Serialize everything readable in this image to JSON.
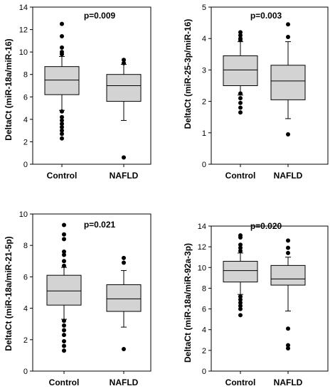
{
  "chart_data": [
    {
      "type": "box",
      "annotation": "p=0.009",
      "ylabel": "DeltaCt (miR-18a/miR-16)",
      "xlabel": "",
      "ylim": [
        0,
        14
      ],
      "yticks": [
        "0",
        "2",
        "4",
        "6",
        "8",
        "10",
        "12",
        "14"
      ],
      "categories": [
        "Control",
        "NAFLD"
      ],
      "boxes": [
        {
          "name": "Control",
          "whisker_low": 4.8,
          "q1": 6.2,
          "median": 7.5,
          "q3": 8.7,
          "whisker_high": 9.6,
          "outliers": [
            12.5,
            11.4,
            10.4,
            10.0,
            9.8,
            4.7,
            4.2,
            3.9,
            3.6,
            3.3,
            3.0,
            2.7,
            2.3
          ]
        },
        {
          "name": "NAFLD",
          "whisker_low": 3.9,
          "q1": 5.6,
          "median": 7.0,
          "q3": 8.0,
          "whisker_high": 8.9,
          "outliers": [
            9.3,
            9.0,
            0.6
          ]
        }
      ]
    },
    {
      "type": "box",
      "annotation": "p=0.003",
      "ylabel": "DeltaCt (miR-25-3p/miR-16)",
      "xlabel": "",
      "ylim": [
        0,
        5
      ],
      "yticks": [
        "0",
        "1",
        "2",
        "3",
        "4",
        "5"
      ],
      "categories": [
        "Control",
        "NAFLD"
      ],
      "boxes": [
        {
          "name": "Control",
          "whisker_low": 2.2,
          "q1": 2.5,
          "median": 3.0,
          "q3": 3.45,
          "whisker_high": 3.9,
          "outliers": [
            4.2,
            4.1,
            4.0,
            3.95,
            2.25,
            2.1,
            1.95,
            1.8,
            1.65
          ]
        },
        {
          "name": "NAFLD",
          "whisker_low": 1.45,
          "q1": 2.05,
          "median": 2.65,
          "q3": 3.15,
          "whisker_high": 3.9,
          "outliers": [
            4.45,
            4.05,
            0.95
          ]
        }
      ]
    },
    {
      "type": "box",
      "annotation": "p=0.021",
      "ylabel": "DeltaCt (miR-18a/miR-21-5p)",
      "xlabel": "",
      "ylim": [
        0,
        10
      ],
      "yticks": [
        "0",
        "2",
        "4",
        "6",
        "8",
        "10"
      ],
      "categories": [
        "Control",
        "NAFLD"
      ],
      "boxes": [
        {
          "name": "Control",
          "whisker_low": 3.3,
          "q1": 4.2,
          "median": 5.1,
          "q3": 6.1,
          "whisker_high": 6.6,
          "outliers": [
            9.3,
            8.7,
            8.4,
            7.6,
            7.4,
            7.0,
            6.7,
            3.2,
            2.9,
            2.6,
            2.3,
            1.9,
            1.6,
            1.3
          ]
        },
        {
          "name": "NAFLD",
          "whisker_low": 2.8,
          "q1": 3.8,
          "median": 4.6,
          "q3": 5.5,
          "whisker_high": 6.4,
          "outliers": [
            7.2,
            6.9,
            1.4
          ]
        }
      ]
    },
    {
      "type": "box",
      "annotation": "p=0.020",
      "ylabel": "DeltaCt (miR-18a/miR-92a-3p)",
      "xlabel": "",
      "ylim": [
        0,
        14
      ],
      "yticks": [
        "0",
        "2",
        "4",
        "6",
        "8",
        "10",
        "12",
        "14"
      ],
      "categories": [
        "Control",
        "NAFLD"
      ],
      "boxes": [
        {
          "name": "Control",
          "whisker_low": 7.4,
          "q1": 8.6,
          "median": 9.7,
          "q3": 10.6,
          "whisker_high": 11.4,
          "outliers": [
            13.1,
            12.9,
            12.2,
            11.9,
            11.6,
            7.2,
            6.9,
            6.6,
            6.3,
            6.0,
            5.4
          ]
        },
        {
          "name": "NAFLD",
          "whisker_low": 5.8,
          "q1": 8.3,
          "median": 8.9,
          "q3": 10.2,
          "whisker_high": 11.0,
          "outliers": [
            12.6,
            11.9,
            11.4,
            4.1,
            2.5,
            2.2
          ]
        }
      ]
    }
  ],
  "colors": {
    "box_fill": "#d3d3d3",
    "stroke": "#000000",
    "outlier": "#000000"
  }
}
